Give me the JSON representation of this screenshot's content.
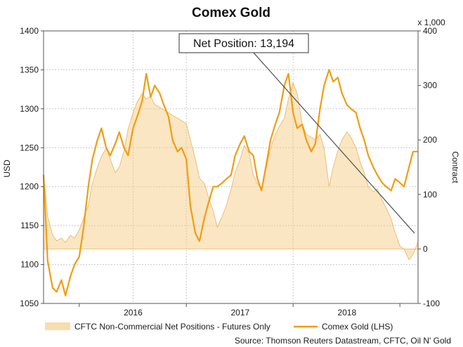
{
  "chart_data": {
    "type": "line",
    "title": "Comex Gold",
    "ylabel": "USD",
    "y2label": "Contract",
    "y2_unit": "x 1,000",
    "ylim": [
      1050,
      1400
    ],
    "y2lim": [
      -100,
      400
    ],
    "yticks": [
      1050,
      1100,
      1150,
      1200,
      1250,
      1300,
      1350,
      1400
    ],
    "y2ticks": [
      -100,
      0,
      100,
      200,
      300,
      400
    ],
    "xticks": [
      "2016",
      "2017",
      "2018"
    ],
    "grid": true,
    "legend_position": "bottom",
    "annotation": "Net Position: 13,194",
    "source": "Source: Thomson Reuters Datastream, CFTC, Oil N' Gold",
    "x_start": "2015-03",
    "x_end": "2018-09",
    "series": [
      {
        "name": "CFTC Non-Commercial Net Positions - Futures Only",
        "axis": "right",
        "style": "area",
        "color": "#f4c777",
        "x": [
          "2015-03-01",
          "2015-03-15",
          "2015-04-01",
          "2015-04-15",
          "2015-05-01",
          "2015-05-15",
          "2015-06-01",
          "2015-06-15",
          "2015-07-01",
          "2015-07-15",
          "2015-08-01",
          "2015-08-15",
          "2015-09-01",
          "2015-09-15",
          "2015-10-01",
          "2015-10-15",
          "2015-11-01",
          "2015-11-15",
          "2015-12-01",
          "2015-12-15",
          "2016-01-01",
          "2016-01-15",
          "2016-02-01",
          "2016-02-15",
          "2016-03-01",
          "2016-03-15",
          "2016-04-01",
          "2016-04-15",
          "2016-05-01",
          "2016-05-15",
          "2016-06-01",
          "2016-06-15",
          "2016-07-01",
          "2016-07-15",
          "2016-08-01",
          "2016-08-15",
          "2016-09-01",
          "2016-09-15",
          "2016-10-01",
          "2016-10-15",
          "2016-11-01",
          "2016-11-15",
          "2016-12-01",
          "2016-12-15",
          "2017-01-01",
          "2017-01-15",
          "2017-02-01",
          "2017-02-15",
          "2017-03-01",
          "2017-03-15",
          "2017-04-01",
          "2017-04-15",
          "2017-05-01",
          "2017-05-15",
          "2017-06-01",
          "2017-06-15",
          "2017-07-01",
          "2017-07-15",
          "2017-08-01",
          "2017-08-15",
          "2017-09-01",
          "2017-09-15",
          "2017-10-01",
          "2017-10-15",
          "2017-11-01",
          "2017-11-15",
          "2017-12-01",
          "2017-12-15",
          "2018-01-01",
          "2018-01-15",
          "2018-02-01",
          "2018-02-15",
          "2018-03-01",
          "2018-03-15",
          "2018-04-01",
          "2018-04-15",
          "2018-05-01",
          "2018-05-15",
          "2018-06-01",
          "2018-06-15",
          "2018-07-01",
          "2018-07-15",
          "2018-08-01",
          "2018-08-15",
          "2018-09-01"
        ],
        "values": [
          140,
          60,
          25,
          15,
          20,
          12,
          25,
          20,
          35,
          55,
          80,
          120,
          150,
          170,
          185,
          165,
          140,
          150,
          180,
          220,
          250,
          270,
          285,
          275,
          280,
          265,
          260,
          255,
          250,
          245,
          240,
          235,
          230,
          200,
          165,
          130,
          120,
          95,
          70,
          40,
          60,
          80,
          110,
          140,
          165,
          190,
          175,
          135,
          120,
          110,
          150,
          185,
          210,
          225,
          240,
          275,
          305,
          285,
          230,
          210,
          205,
          200,
          210,
          185,
          115,
          150,
          180,
          200,
          215,
          205,
          185,
          160,
          140,
          115,
          105,
          110,
          90,
          75,
          55,
          30,
          5,
          0,
          -20,
          -10,
          13
        ]
      },
      {
        "name": "Comex Gold (LHS)",
        "axis": "left",
        "style": "line",
        "color": "#f29c12",
        "x": [
          "2015-03-01",
          "2015-03-15",
          "2015-04-01",
          "2015-04-15",
          "2015-05-01",
          "2015-05-15",
          "2015-06-01",
          "2015-06-15",
          "2015-07-01",
          "2015-07-15",
          "2015-08-01",
          "2015-08-15",
          "2015-09-01",
          "2015-09-15",
          "2015-10-01",
          "2015-10-15",
          "2015-11-01",
          "2015-11-15",
          "2015-12-01",
          "2015-12-15",
          "2016-01-01",
          "2016-01-15",
          "2016-02-01",
          "2016-02-15",
          "2016-03-01",
          "2016-03-15",
          "2016-04-01",
          "2016-04-15",
          "2016-05-01",
          "2016-05-15",
          "2016-06-01",
          "2016-06-15",
          "2016-07-01",
          "2016-07-15",
          "2016-08-01",
          "2016-08-15",
          "2016-09-01",
          "2016-09-15",
          "2016-10-01",
          "2016-10-15",
          "2016-11-01",
          "2016-11-15",
          "2016-12-01",
          "2016-12-15",
          "2017-01-01",
          "2017-01-15",
          "2017-02-01",
          "2017-02-15",
          "2017-03-01",
          "2017-03-15",
          "2017-04-01",
          "2017-04-15",
          "2017-05-01",
          "2017-05-15",
          "2017-06-01",
          "2017-06-15",
          "2017-07-01",
          "2017-07-15",
          "2017-08-01",
          "2017-08-15",
          "2017-09-01",
          "2017-09-15",
          "2017-10-01",
          "2017-10-15",
          "2017-11-01",
          "2017-11-15",
          "2017-12-01",
          "2017-12-15",
          "2018-01-01",
          "2018-01-15",
          "2018-02-01",
          "2018-02-15",
          "2018-03-01",
          "2018-03-15",
          "2018-04-01",
          "2018-04-15",
          "2018-05-01",
          "2018-05-15",
          "2018-06-01",
          "2018-06-15",
          "2018-07-01",
          "2018-07-15",
          "2018-08-01",
          "2018-08-15",
          "2018-09-01"
        ],
        "values": [
          1215,
          1105,
          1070,
          1065,
          1080,
          1060,
          1085,
          1100,
          1110,
          1145,
          1200,
          1235,
          1260,
          1275,
          1250,
          1240,
          1255,
          1270,
          1250,
          1240,
          1275,
          1290,
          1310,
          1345,
          1315,
          1330,
          1320,
          1305,
          1290,
          1260,
          1245,
          1250,
          1235,
          1175,
          1140,
          1130,
          1160,
          1180,
          1200,
          1200,
          1205,
          1210,
          1215,
          1240,
          1255,
          1265,
          1245,
          1240,
          1210,
          1195,
          1230,
          1260,
          1280,
          1295,
          1330,
          1345,
          1295,
          1275,
          1280,
          1260,
          1245,
          1255,
          1300,
          1330,
          1350,
          1335,
          1340,
          1320,
          1305,
          1300,
          1295,
          1275,
          1260,
          1240,
          1225,
          1215,
          1205,
          1200,
          1195,
          1210,
          1205,
          1200,
          1225,
          1245,
          1245
        ]
      }
    ]
  }
}
